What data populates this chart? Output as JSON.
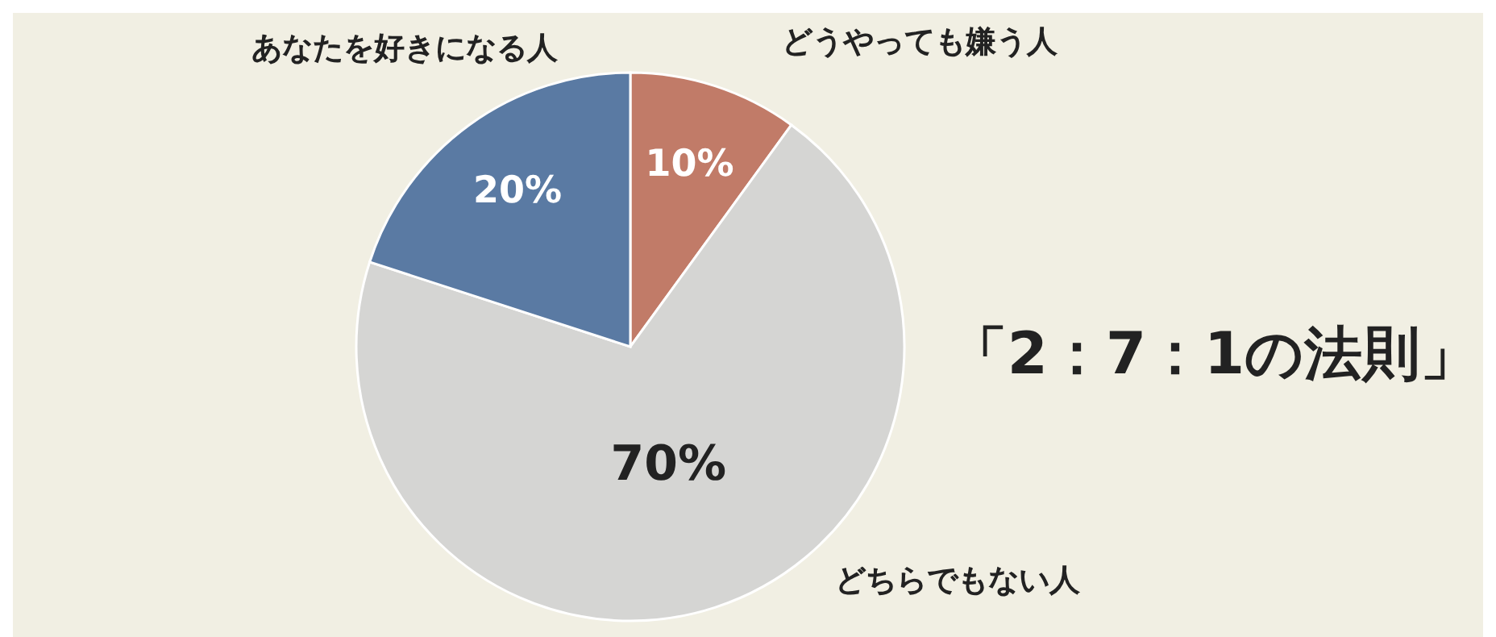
{
  "chart_data": {
    "type": "pie",
    "title": "「2：7：1の法則」",
    "categories": [
      "どうやっても嫌う人",
      "どちらでもない人",
      "あなたを好きになる人"
    ],
    "values": [
      10,
      70,
      20
    ],
    "colors": [
      "#c17b68",
      "#d5d5d3",
      "#5a7aa3"
    ],
    "value_labels": [
      "10%",
      "70%",
      "20%"
    ]
  }
}
